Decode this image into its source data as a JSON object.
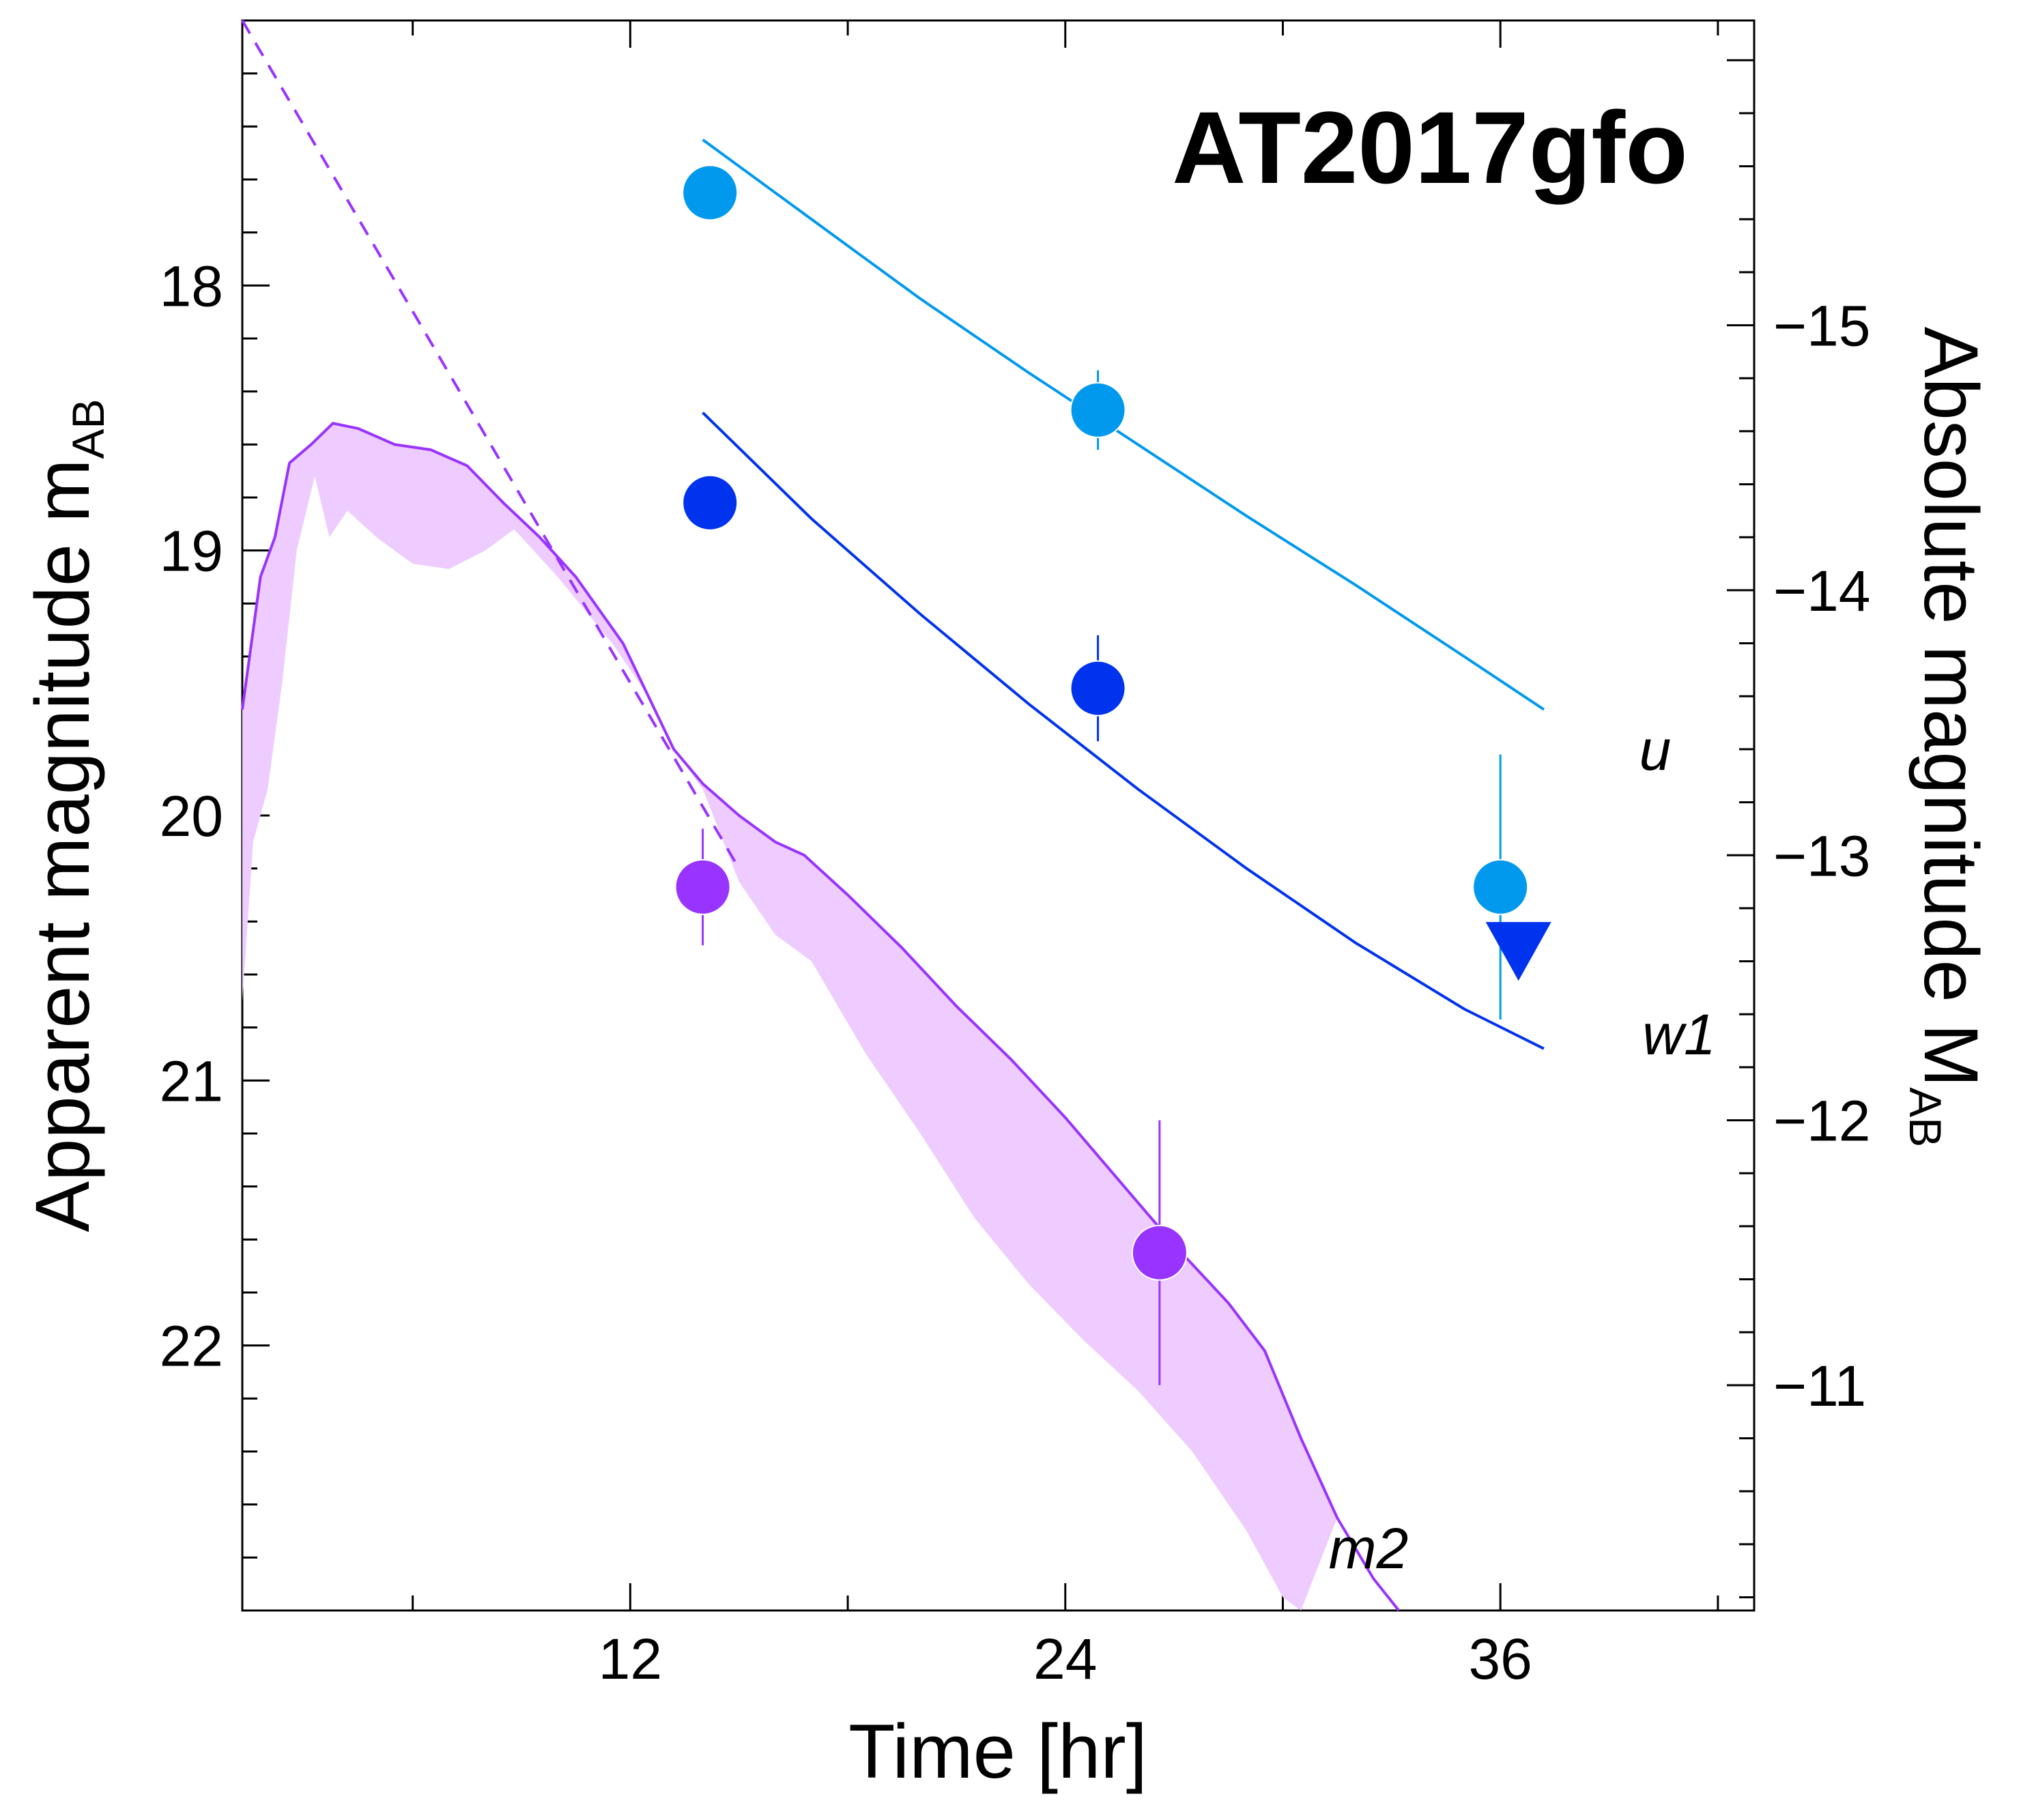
{
  "chart_data": {
    "type": "scatter",
    "title": "AT2017gfo",
    "xlabel": "Time [hr]",
    "ylabel_left": {
      "main": "Apparent magnitude  m",
      "sub": "AB"
    },
    "ylabel_right": {
      "main": "Absolute magnitude M",
      "sub": "AB"
    },
    "xlim": [
      1.3,
      43.0
    ],
    "ylim": [
      17.0,
      23.0
    ],
    "y_inverted": true,
    "right_axis_offset": -33.15,
    "x_ticks": [
      12,
      24,
      36
    ],
    "x_tick_labels": [
      "12",
      "24",
      "36"
    ],
    "y_ticks": [
      18,
      19,
      20,
      21,
      22
    ],
    "y_tick_labels": [
      "18",
      "19",
      "20",
      "21",
      "22"
    ],
    "y2_ticks": [
      -15,
      -14,
      -13,
      -12,
      -11
    ],
    "y2_tick_labels": [
      "−15",
      "−14",
      "−13",
      "−12",
      "−11"
    ],
    "grid": false,
    "colors": {
      "u": "#0099ee",
      "w1": "#0033ee",
      "m2": "#9933ff",
      "band": "#eeccff",
      "title": "#aaaaaa"
    },
    "series": [
      {
        "name": "u",
        "label": "u",
        "color": "#0099ee",
        "points": [
          {
            "x": 14.2,
            "y": 17.65
          },
          {
            "x": 24.9,
            "y": 18.47,
            "err": 0.15
          },
          {
            "x": 36.0,
            "y": 20.27,
            "err": 0.5
          }
        ],
        "model": [
          [
            14.0,
            17.45
          ],
          [
            17.0,
            17.75
          ],
          [
            20.0,
            18.05
          ],
          [
            23.0,
            18.33
          ],
          [
            26.0,
            18.6
          ],
          [
            29.0,
            18.87
          ],
          [
            32.0,
            19.13
          ],
          [
            35.0,
            19.4
          ],
          [
            37.2,
            19.6
          ]
        ]
      },
      {
        "name": "w1",
        "label": "w1",
        "color": "#0033ee",
        "points": [
          {
            "x": 14.2,
            "y": 18.82
          },
          {
            "x": 24.9,
            "y": 19.52,
            "err": 0.2
          }
        ],
        "upper_limits": [
          {
            "x": 36.5,
            "y": 20.5
          }
        ],
        "model": [
          [
            14.0,
            18.48
          ],
          [
            17.0,
            18.88
          ],
          [
            20.0,
            19.24
          ],
          [
            23.0,
            19.58
          ],
          [
            26.0,
            19.9
          ],
          [
            29.0,
            20.2
          ],
          [
            32.0,
            20.48
          ],
          [
            35.0,
            20.73
          ],
          [
            37.2,
            20.88
          ]
        ]
      },
      {
        "name": "m2",
        "label": "m2",
        "color": "#9933ff",
        "points": [
          {
            "x": 14.0,
            "y": 20.27,
            "err": 0.22
          },
          {
            "x": 26.6,
            "y": 21.65,
            "err": 0.5
          }
        ],
        "model": [
          [
            1.3,
            19.6
          ],
          [
            1.8,
            19.1
          ],
          [
            2.2,
            18.95
          ],
          [
            2.6,
            18.67
          ],
          [
            3.2,
            18.6
          ],
          [
            3.8,
            18.52
          ],
          [
            4.5,
            18.54
          ],
          [
            5.5,
            18.6
          ],
          [
            6.5,
            18.62
          ],
          [
            7.5,
            18.68
          ],
          [
            8.5,
            18.82
          ],
          [
            9.5,
            18.95
          ],
          [
            10.5,
            19.1
          ],
          [
            11.8,
            19.35
          ],
          [
            12.5,
            19.55
          ],
          [
            13.2,
            19.75
          ],
          [
            14.0,
            19.88
          ],
          [
            15.0,
            20.0
          ],
          [
            16.0,
            20.1
          ],
          [
            16.8,
            20.15
          ],
          [
            18.0,
            20.3
          ],
          [
            19.5,
            20.5
          ],
          [
            21.0,
            20.72
          ],
          [
            22.5,
            20.92
          ],
          [
            24.0,
            21.14
          ],
          [
            25.5,
            21.38
          ],
          [
            27.0,
            21.62
          ],
          [
            28.5,
            21.84
          ],
          [
            29.5,
            22.02
          ],
          [
            30.5,
            22.35
          ],
          [
            31.5,
            22.65
          ],
          [
            32.5,
            22.88
          ],
          [
            33.2,
            23.0
          ]
        ],
        "model_extrapolation": [
          [
            1.3,
            17.0
          ],
          [
            15.0,
            20.2
          ]
        ],
        "model_range_lower": [
          [
            1.3,
            20.7
          ],
          [
            1.6,
            20.1
          ],
          [
            2.0,
            19.9
          ],
          [
            2.4,
            19.5
          ],
          [
            2.8,
            19.0
          ],
          [
            3.3,
            18.72
          ],
          [
            3.7,
            18.95
          ],
          [
            4.2,
            18.85
          ],
          [
            5.0,
            18.95
          ],
          [
            6.0,
            19.05
          ],
          [
            7.0,
            19.07
          ],
          [
            8.0,
            19.0
          ],
          [
            8.8,
            18.92
          ],
          [
            10.0,
            19.1
          ],
          [
            11.5,
            19.35
          ],
          [
            12.5,
            19.55
          ],
          [
            13.2,
            19.75
          ],
          [
            14.0,
            19.9
          ],
          [
            15.0,
            20.25
          ],
          [
            16.0,
            20.45
          ],
          [
            17.0,
            20.55
          ],
          [
            18.5,
            20.9
          ],
          [
            20.0,
            21.2
          ],
          [
            21.5,
            21.52
          ],
          [
            23.0,
            21.77
          ],
          [
            24.5,
            21.98
          ],
          [
            26.0,
            22.17
          ],
          [
            27.5,
            22.4
          ],
          [
            29.0,
            22.7
          ],
          [
            30.0,
            22.95
          ],
          [
            30.5,
            23.0
          ]
        ]
      }
    ]
  }
}
